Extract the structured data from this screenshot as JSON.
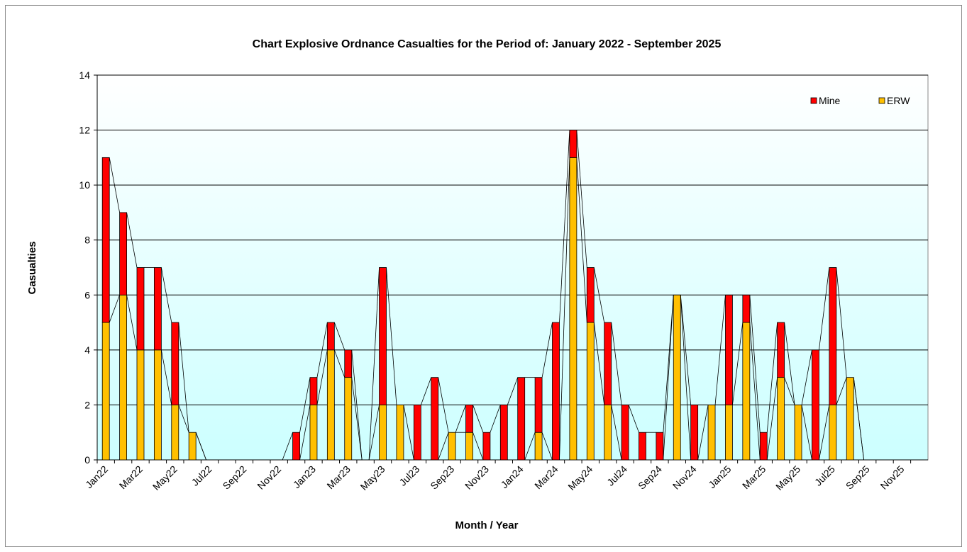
{
  "chart_data": {
    "type": "bar",
    "stacked": true,
    "title": "Chart Explosive Ordnance Casualties for the Period of: January 2022 - September 2025",
    "x_label": "Month / Year",
    "y_label": "Casualties",
    "categories": [
      "Jan22",
      null,
      "Mar22",
      null,
      "May22",
      null,
      "Jul22",
      null,
      "Sep22",
      null,
      "Nov22",
      null,
      "Jan23",
      null,
      "Mar23",
      null,
      "May23",
      null,
      "Jul23",
      null,
      "Sep23",
      null,
      "Nov23",
      null,
      "Jan24",
      null,
      "Mar24",
      null,
      "May24",
      null,
      "Jul24",
      null,
      "Sep24",
      null,
      "Nov24",
      null,
      "Jan25",
      null,
      "Mar25",
      null,
      "May25",
      null,
      "Jul25",
      null,
      "Sep25",
      null,
      "Nov25",
      null
    ],
    "series": [
      {
        "name": "Mine",
        "color": "#ff0000",
        "values": [
          6,
          3,
          3,
          3,
          3,
          0,
          0,
          0,
          0,
          0,
          0,
          1,
          1,
          1,
          1,
          0,
          5,
          0,
          2,
          3,
          0,
          1,
          1,
          2,
          3,
          2,
          5,
          1,
          2,
          3,
          2,
          1,
          1,
          0,
          2,
          0,
          4,
          1,
          1,
          2,
          0,
          4,
          5,
          0,
          0,
          0,
          0,
          0
        ]
      },
      {
        "name": "ERW",
        "color": "#ffc000",
        "values": [
          5,
          6,
          4,
          4,
          2,
          1,
          0,
          0,
          0,
          0,
          0,
          0,
          2,
          4,
          3,
          0,
          2,
          2,
          0,
          0,
          1,
          1,
          0,
          0,
          0,
          1,
          0,
          11,
          5,
          2,
          0,
          0,
          0,
          6,
          0,
          2,
          2,
          5,
          0,
          3,
          2,
          0,
          2,
          3,
          0,
          0,
          0,
          0
        ]
      }
    ],
    "ylim": [
      0,
      14
    ],
    "yticks": [
      0,
      2,
      4,
      6,
      8,
      10,
      12,
      14
    ],
    "grid": true,
    "legend": "top-right"
  }
}
